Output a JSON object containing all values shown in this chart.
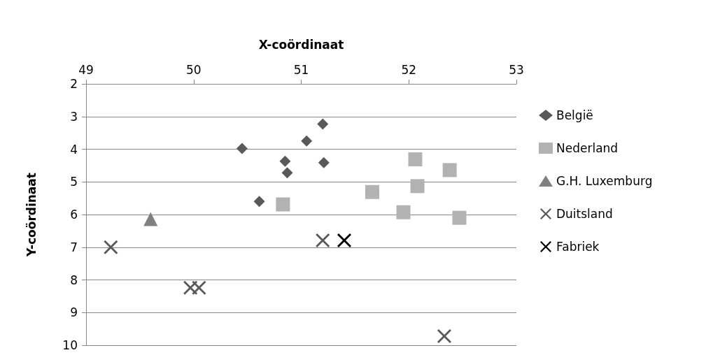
{
  "chart_data": {
    "type": "scatter",
    "xlabel": "X-coördinaat",
    "ylabel": "Y-coördinaat",
    "xlim": [
      49,
      53
    ],
    "xticks": [
      49,
      50,
      51,
      52,
      53
    ],
    "ylim": [
      10,
      2
    ],
    "yticks": [
      2,
      3,
      4,
      5,
      6,
      7,
      8,
      9,
      10
    ],
    "grid": "y",
    "legend": "right",
    "series": [
      {
        "name": "België",
        "color": "#595959",
        "marker": "diamond",
        "x": [
          51.2,
          51.05,
          50.45,
          50.85,
          50.87,
          51.21,
          50.61
        ],
        "values": [
          3.23,
          3.75,
          3.98,
          4.37,
          4.72,
          4.41,
          5.6
        ]
      },
      {
        "name": "Nederland",
        "color": "#b2b2b2",
        "marker": "square",
        "x": [
          52.06,
          52.38,
          52.08,
          51.66,
          50.83,
          51.95,
          52.47
        ],
        "values": [
          4.31,
          4.64,
          5.13,
          5.31,
          5.69,
          5.93,
          6.1
        ]
      },
      {
        "name": "G.H. Luxemburg",
        "color": "#808080",
        "marker": "triangle",
        "x": [
          49.6
        ],
        "values": [
          6.14
        ]
      },
      {
        "name": "Duitsland",
        "color": "#595959",
        "marker": "cross",
        "x": [
          49.23,
          49.97,
          50.05,
          51.2,
          52.33
        ],
        "values": [
          7.0,
          8.24,
          8.24,
          6.79,
          9.72
        ]
      },
      {
        "name": "Fabriek",
        "color": "#000000",
        "marker": "cross",
        "x": [
          51.4
        ],
        "values": [
          6.79
        ]
      }
    ]
  }
}
